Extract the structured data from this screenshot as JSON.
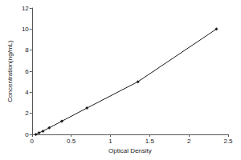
{
  "chart_data": {
    "type": "line",
    "x_label": "Optical Density",
    "y_label": "Concentration(ng/mL)",
    "x": [
      0.05,
      0.09,
      0.14,
      0.22,
      0.38,
      0.7,
      1.35,
      2.35
    ],
    "values": [
      0,
      0.156,
      0.312,
      0.625,
      1.25,
      2.5,
      5,
      10
    ],
    "color": "#1a1a1a",
    "marker": "diamond",
    "xlim": [
      0,
      2.5
    ],
    "xticks": [
      0,
      0.5,
      1,
      1.5,
      2,
      2.5
    ],
    "ylim": [
      0,
      12
    ],
    "yticks": [
      0,
      2,
      4,
      6,
      8,
      10,
      12
    ],
    "grid": false
  }
}
